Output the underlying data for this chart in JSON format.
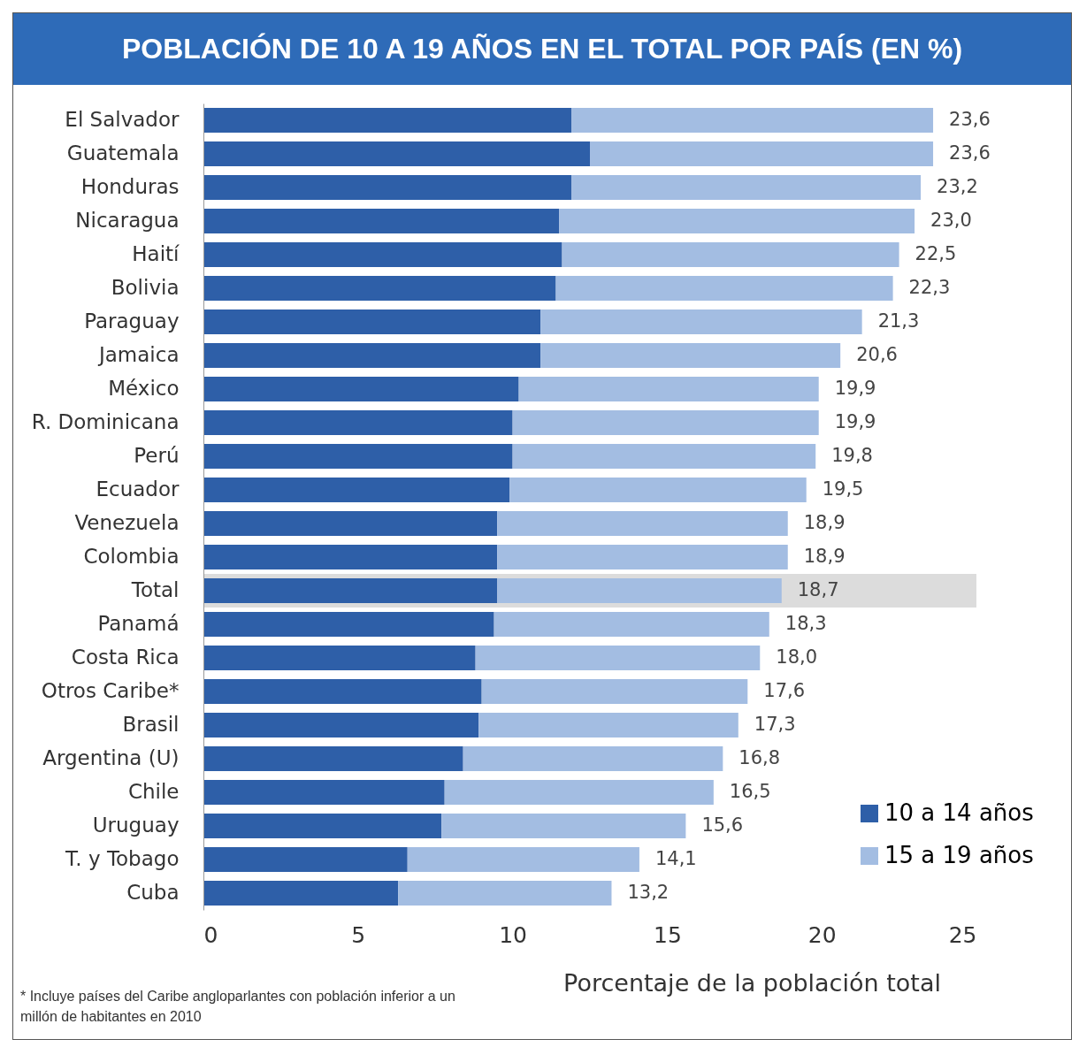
{
  "chart_data": {
    "type": "bar",
    "orientation": "horizontal",
    "stacked": true,
    "title": "POBLACIÓN DE 10 A 19 AÑOS EN EL TOTAL POR PAÍS (EN %)",
    "xlabel": "Porcentaje de la población total",
    "categories": [
      "El Salvador",
      "Guatemala",
      "Honduras",
      "Nicaragua",
      "Haití",
      "Bolivia",
      "Paraguay",
      "Jamaica",
      "México",
      "R. Dominicana",
      "Perú",
      "Ecuador",
      "Venezuela",
      "Colombia",
      "Total",
      "Panamá",
      "Costa Rica",
      "Otros Caribe*",
      "Brasil",
      "Argentina (U)",
      "Chile",
      "Uruguay",
      "T. y Tobago",
      "Cuba"
    ],
    "series": [
      {
        "name": "10 a 14 años",
        "color": "#2e5fa8",
        "values": [
          11.9,
          12.5,
          11.9,
          11.5,
          11.6,
          11.4,
          10.9,
          10.9,
          10.2,
          10.0,
          10.0,
          9.9,
          9.5,
          9.5,
          9.5,
          9.4,
          8.8,
          9.0,
          8.9,
          8.4,
          7.8,
          7.7,
          6.6,
          6.3
        ]
      },
      {
        "name": "15 a 19 años",
        "color": "#a3bde2",
        "values": [
          11.7,
          11.1,
          11.3,
          11.5,
          10.9,
          10.9,
          10.4,
          9.7,
          9.7,
          9.9,
          9.8,
          9.6,
          9.4,
          9.4,
          9.2,
          8.9,
          9.2,
          8.6,
          8.4,
          8.4,
          8.7,
          7.9,
          7.5,
          6.9
        ]
      }
    ],
    "totals": [
      "23,6",
      "23,6",
      "23,2",
      "23,0",
      "22,5",
      "22,3",
      "21,3",
      "20,6",
      "19,9",
      "19,9",
      "19,8",
      "19,5",
      "18,9",
      "18,9",
      "18,7",
      "18,3",
      "18,0",
      "17,6",
      "17,3",
      "16,8",
      "16,5",
      "15,6",
      "14,1",
      "13,2"
    ],
    "bands": [
      {
        "axis": "y",
        "from": "Total",
        "to": "Total",
        "color": "#dcdcdc"
      }
    ],
    "xlim": [
      0,
      25
    ],
    "xticks": [
      0,
      5,
      10,
      15,
      20,
      25
    ],
    "grid": false,
    "legend": "bottom right",
    "annotations": [
      "* Incluye países del Caribe angloparlantes con población inferior a un millón de habitantes en 2010"
    ]
  }
}
